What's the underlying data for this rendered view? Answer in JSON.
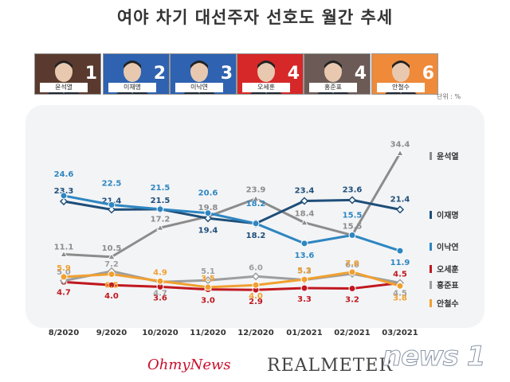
{
  "title": "여야 차기 대선주자 선호도 월간 추세",
  "unit": "단위 : %",
  "cards": [
    {
      "name": "윤석열",
      "rank": "1",
      "bg": "#5a3a2e"
    },
    {
      "name": "이재명",
      "rank": "2",
      "bg": "#2f62b0"
    },
    {
      "name": "이낙연",
      "rank": "3",
      "bg": "#2f62b0"
    },
    {
      "name": "오세훈",
      "rank": "4",
      "bg": "#d62828"
    },
    {
      "name": "홍준표",
      "rank": "4",
      "bg": "#6b5a55"
    },
    {
      "name": "안철수",
      "rank": "6",
      "bg": "#ee8a3a"
    }
  ],
  "footer": {
    "left": "OhmyNews",
    "right": "REALMETER",
    "watermark": "news 1"
  },
  "chart_data": {
    "type": "line",
    "categories": [
      "8/2020",
      "9/2020",
      "10/2020",
      "11/2020",
      "12/2020",
      "01/2021",
      "02/2021",
      "03/2021"
    ],
    "ylim": [
      0,
      36
    ],
    "grid": false,
    "legend": "right",
    "series": [
      {
        "name": "윤석열",
        "color": "#8c8c8c",
        "marker": "triangle",
        "values": [
          11.1,
          10.5,
          17.2,
          19.8,
          23.9,
          18.4,
          15.5,
          34.4
        ]
      },
      {
        "name": "이재명",
        "color": "#1e4e79",
        "marker": "diamond",
        "values": [
          23.3,
          21.4,
          21.5,
          19.4,
          18.2,
          23.4,
          23.6,
          21.4
        ]
      },
      {
        "name": "이낙연",
        "color": "#2e86c1",
        "marker": "circle",
        "values": [
          24.6,
          22.5,
          21.5,
          20.6,
          18.2,
          13.6,
          15.5,
          11.9
        ]
      },
      {
        "name": "오세훈",
        "color": "#c0181f",
        "marker": "circle",
        "values": [
          4.7,
          4.0,
          3.6,
          3.0,
          2.9,
          3.3,
          3.2,
          4.5
        ]
      },
      {
        "name": "홍준표",
        "color": "#9e9e9e",
        "marker": "diamond",
        "values": [
          5.0,
          7.2,
          4.7,
          5.1,
          6.0,
          5.2,
          6.6,
          4.5
        ]
      },
      {
        "name": "안철수",
        "color": "#f0a030",
        "marker": "circle",
        "values": [
          5.9,
          6.5,
          4.9,
          3.5,
          4.0,
          5.3,
          7.0,
          3.8
        ]
      }
    ]
  }
}
